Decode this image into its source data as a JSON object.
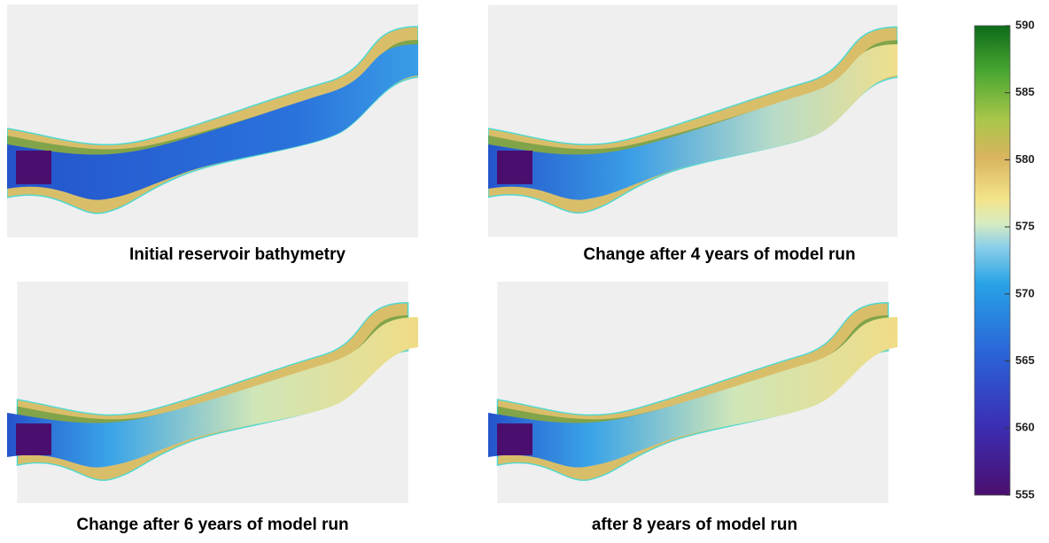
{
  "panels": [
    {
      "caption": "Initial reservoir bathymetry"
    },
    {
      "caption": "Change after 4 years of model run"
    },
    {
      "caption": "Change after 6 years of model run"
    },
    {
      "caption": "after 8 years of model run"
    }
  ],
  "colorbar": {
    "lim": [
      555,
      590
    ],
    "ticks": [
      555,
      560,
      565,
      570,
      575,
      580,
      585,
      590
    ]
  }
}
